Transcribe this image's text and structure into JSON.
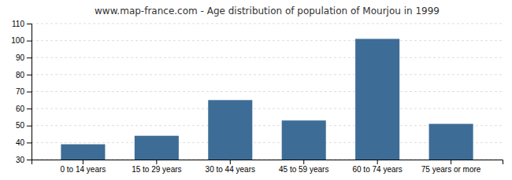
{
  "chart_data": {
    "type": "bar",
    "title": "www.map-france.com - Age distribution of population of Mourjou in 1999",
    "categories": [
      "0 to 14 years",
      "15 to 29 years",
      "30 to 44 years",
      "45 to 59 years",
      "60 to 74 years",
      "75 years or more"
    ],
    "values": [
      39,
      44,
      65,
      53,
      101,
      51
    ],
    "color": "#3d6d96",
    "ylim": [
      30,
      110
    ],
    "yticks": [
      30,
      40,
      50,
      60,
      70,
      80,
      90,
      100,
      110
    ],
    "grid": true
  }
}
